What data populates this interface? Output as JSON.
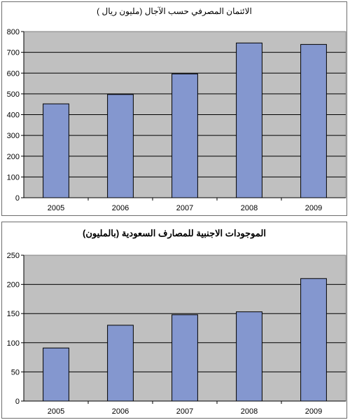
{
  "chart_data": [
    {
      "type": "bar",
      "title": "الائتمان المصرفي حسب الآجال (مليون ريال )",
      "categories": [
        "2005",
        "2006",
        "2007",
        "2008",
        "2009"
      ],
      "values": [
        452,
        497,
        596,
        745,
        738
      ],
      "ylim": [
        0,
        800
      ],
      "yticks": [
        0,
        100,
        200,
        300,
        400,
        500,
        600,
        700,
        800
      ],
      "grid": true,
      "legend": "none",
      "bar_color": "#8497cf",
      "plot_background": "#c0c0c0"
    },
    {
      "type": "bar",
      "title": "الموجودات الاجنبية للمصارف السعودية (بالمليون)",
      "categories": [
        "2005",
        "2006",
        "2007",
        "2008",
        "2009"
      ],
      "values": [
        91,
        130,
        148,
        153,
        210
      ],
      "ylim": [
        0,
        250
      ],
      "yticks": [
        0,
        50,
        100,
        150,
        200,
        250
      ],
      "grid": true,
      "legend": "none",
      "bar_color": "#8497cf",
      "plot_background": "#c0c0c0"
    }
  ]
}
